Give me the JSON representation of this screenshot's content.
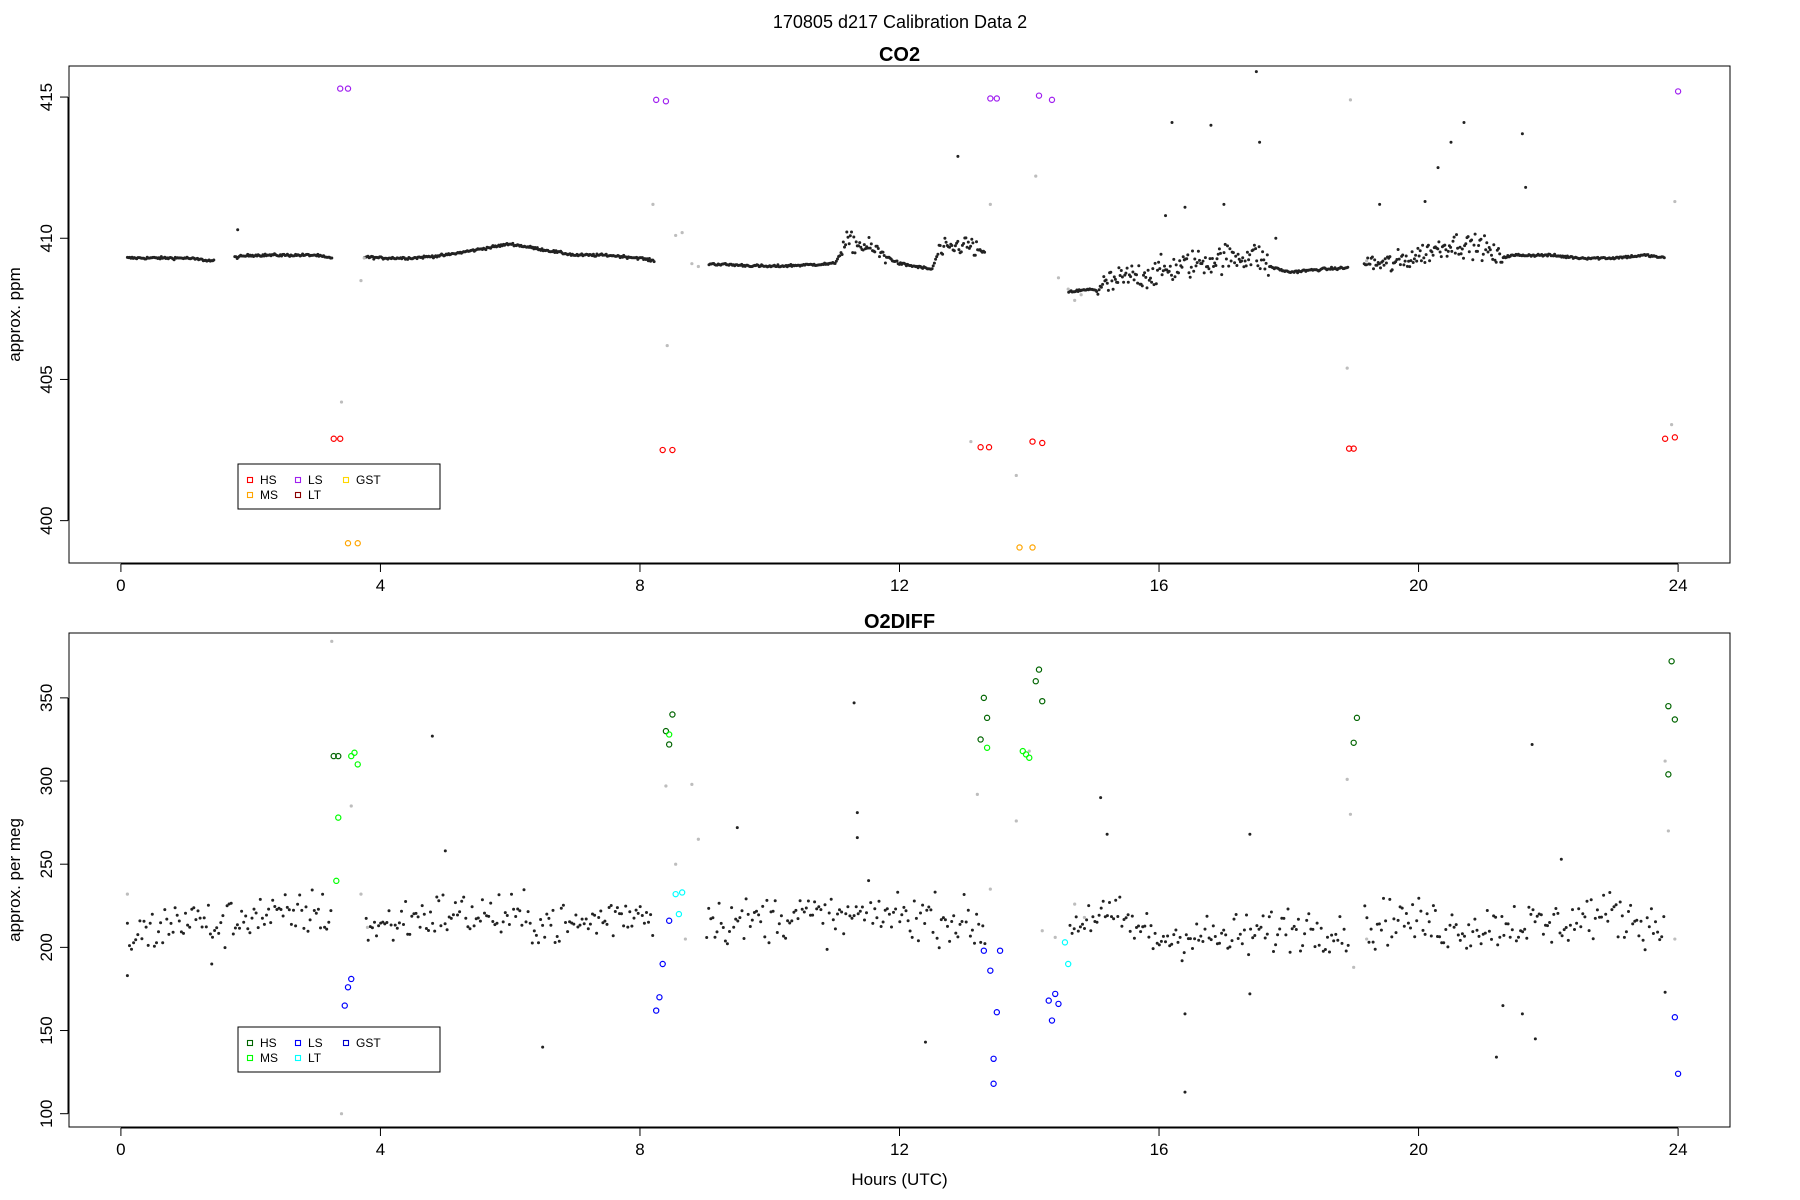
{
  "page": {
    "title": "170805   d217   Calibration Data 2"
  },
  "chart_data": [
    {
      "type": "scatter",
      "title": "CO2",
      "xlabel": "",
      "ylabel": "approx. ppm",
      "xlim": [
        -0.8,
        24.8
      ],
      "ylim": [
        398.5,
        416.1
      ],
      "xticks": [
        0,
        4,
        8,
        12,
        16,
        20,
        24
      ],
      "yticks": [
        400,
        405,
        410,
        415
      ],
      "baseline": [
        [
          0.1,
          409.3
        ],
        [
          0.5,
          409.3
        ],
        [
          1.0,
          409.3
        ],
        [
          1.4,
          409.2
        ],
        [
          1.7,
          409.3
        ],
        [
          2.0,
          409.4
        ],
        [
          2.5,
          409.4
        ],
        [
          3.0,
          409.4
        ],
        [
          3.2,
          409.3
        ],
        [
          3.7,
          409.35
        ],
        [
          4.0,
          409.3
        ],
        [
          4.5,
          409.3
        ],
        [
          5.0,
          409.4
        ],
        [
          5.5,
          409.6
        ],
        [
          6.0,
          409.8
        ],
        [
          6.5,
          409.6
        ],
        [
          7.0,
          409.4
        ],
        [
          7.5,
          409.4
        ],
        [
          8.0,
          409.3
        ],
        [
          8.2,
          409.2
        ],
        [
          9.0,
          409.1
        ],
        [
          10.0,
          409.0
        ],
        [
          10.5,
          409.05
        ],
        [
          11.0,
          409.1
        ],
        [
          11.2,
          409.9
        ],
        [
          11.6,
          409.6
        ],
        [
          12.0,
          409.1
        ],
        [
          12.5,
          408.9
        ],
        [
          12.6,
          409.5
        ],
        [
          13.0,
          409.8
        ],
        [
          13.2,
          409.6
        ],
        [
          14.6,
          408.1
        ],
        [
          15.0,
          408.2
        ],
        [
          15.5,
          408.6
        ],
        [
          16.0,
          408.8
        ],
        [
          16.5,
          409.1
        ],
        [
          17.0,
          409.3
        ],
        [
          17.5,
          409.4
        ],
        [
          17.7,
          409.0
        ],
        [
          18.0,
          408.8
        ],
        [
          18.5,
          408.9
        ],
        [
          18.9,
          408.95
        ],
        [
          19.2,
          409.1
        ],
        [
          19.6,
          409.1
        ],
        [
          20.0,
          409.4
        ],
        [
          20.5,
          409.8
        ],
        [
          21.0,
          409.7
        ],
        [
          21.2,
          409.3
        ],
        [
          21.5,
          409.4
        ],
        [
          22.0,
          409.4
        ],
        [
          22.5,
          409.3
        ],
        [
          23.0,
          409.3
        ],
        [
          23.5,
          409.4
        ],
        [
          23.8,
          409.3
        ]
      ],
      "gaps": [
        [
          1.45,
          1.75
        ],
        [
          3.25,
          3.75
        ],
        [
          8.22,
          9.05
        ],
        [
          13.32,
          14.6
        ],
        [
          18.92,
          19.15
        ]
      ],
      "gray_points": [
        [
          3.75,
          409.3
        ],
        [
          3.7,
          408.5
        ],
        [
          3.4,
          404.2
        ],
        [
          8.2,
          411.2
        ],
        [
          8.42,
          406.2
        ],
        [
          8.55,
          410.1
        ],
        [
          8.65,
          410.2
        ],
        [
          8.8,
          409.1
        ],
        [
          8.9,
          409.0
        ],
        [
          13.1,
          402.8
        ],
        [
          13.4,
          411.2
        ],
        [
          14.1,
          412.2
        ],
        [
          13.8,
          401.6
        ],
        [
          14.45,
          408.6
        ],
        [
          14.6,
          408.2
        ],
        [
          14.7,
          407.8
        ],
        [
          14.8,
          408.0
        ],
        [
          18.9,
          405.4
        ],
        [
          18.95,
          414.9
        ],
        [
          19.2,
          409.2
        ],
        [
          23.9,
          403.4
        ],
        [
          23.95,
          411.3
        ]
      ],
      "outliers": [
        [
          1.8,
          410.3
        ],
        [
          12.9,
          412.9
        ],
        [
          16.2,
          414.1
        ],
        [
          16.8,
          414.0
        ],
        [
          17.55,
          413.4
        ],
        [
          17.5,
          415.9
        ],
        [
          20.5,
          413.4
        ],
        [
          20.7,
          414.1
        ],
        [
          21.6,
          413.7
        ],
        [
          21.65,
          411.8
        ],
        [
          20.1,
          411.3
        ],
        [
          20.3,
          412.5
        ],
        [
          19.4,
          411.2
        ],
        [
          16.4,
          411.1
        ],
        [
          16.1,
          410.8
        ],
        [
          17.0,
          411.2
        ],
        [
          17.8,
          410.0
        ]
      ],
      "series": [
        {
          "name": "HS",
          "color": "#ff0000",
          "points": [
            [
              3.28,
              402.9
            ],
            [
              3.38,
              402.9
            ],
            [
              8.35,
              402.5
            ],
            [
              8.5,
              402.5
            ],
            [
              13.25,
              402.6
            ],
            [
              13.38,
              402.6
            ],
            [
              14.05,
              402.8
            ],
            [
              14.2,
              402.75
            ],
            [
              18.93,
              402.55
            ],
            [
              19.0,
              402.55
            ],
            [
              23.8,
              402.9
            ],
            [
              23.95,
              402.95
            ]
          ]
        },
        {
          "name": "MS",
          "color": "#ffa500",
          "points": [
            [
              3.5,
              399.2
            ],
            [
              3.65,
              399.2
            ],
            [
              13.85,
              399.05
            ],
            [
              14.05,
              399.05
            ]
          ]
        },
        {
          "name": "LS",
          "color": "#a020f0",
          "points": [
            [
              3.38,
              415.3
            ],
            [
              3.5,
              415.3
            ],
            [
              8.25,
              414.9
            ],
            [
              8.4,
              414.85
            ],
            [
              13.4,
              414.95
            ],
            [
              13.5,
              414.95
            ],
            [
              14.15,
              415.05
            ],
            [
              14.35,
              414.9
            ],
            [
              24.0,
              415.2
            ]
          ]
        },
        {
          "name": "LT",
          "color": "#8b0000",
          "points": []
        },
        {
          "name": "GST",
          "color": "#ffd700",
          "points": []
        }
      ],
      "legend_position": "bottom-left"
    },
    {
      "type": "scatter",
      "title": "O2DIFF",
      "xlabel": "Hours (UTC)",
      "ylabel": "approx. per meg",
      "xlim": [
        -0.8,
        24.8
      ],
      "ylim": [
        92,
        389
      ],
      "xticks": [
        0,
        4,
        8,
        12,
        16,
        20,
        24
      ],
      "yticks": [
        100,
        150,
        200,
        250,
        300,
        350
      ],
      "baseline": [
        [
          0.1,
          205
        ],
        [
          0.5,
          210
        ],
        [
          1.0,
          218
        ],
        [
          1.5,
          212
        ],
        [
          2.0,
          220
        ],
        [
          2.5,
          218
        ],
        [
          3.0,
          222
        ],
        [
          3.5,
          215
        ],
        [
          4.0,
          212
        ],
        [
          4.5,
          218
        ],
        [
          5.0,
          220
        ],
        [
          5.5,
          220
        ],
        [
          6.0,
          218
        ],
        [
          6.5,
          215
        ],
        [
          7.0,
          213
        ],
        [
          7.5,
          218
        ],
        [
          8.0,
          222
        ],
        [
          8.5,
          215
        ],
        [
          9.0,
          218
        ],
        [
          9.5,
          215
        ],
        [
          10.0,
          218
        ],
        [
          10.5,
          220
        ],
        [
          11.0,
          216
        ],
        [
          11.5,
          220
        ],
        [
          12.0,
          220
        ],
        [
          12.5,
          218
        ],
        [
          13.0,
          215
        ],
        [
          13.3,
          210
        ],
        [
          14.6,
          212
        ],
        [
          15.0,
          220
        ],
        [
          15.5,
          215
        ],
        [
          16.0,
          205
        ],
        [
          16.5,
          208
        ],
        [
          17.0,
          205
        ],
        [
          17.5,
          208
        ],
        [
          18.0,
          212
        ],
        [
          18.5,
          212
        ],
        [
          19.0,
          210
        ],
        [
          19.3,
          212
        ],
        [
          19.6,
          218
        ],
        [
          20.0,
          215
        ],
        [
          20.5,
          212
        ],
        [
          21.0,
          212
        ],
        [
          21.5,
          215
        ],
        [
          22.0,
          212
        ],
        [
          22.5,
          218
        ],
        [
          23.0,
          220
        ],
        [
          23.5,
          215
        ],
        [
          23.8,
          210
        ]
      ],
      "spread": 14,
      "gaps": [
        [
          3.25,
          3.75
        ],
        [
          8.22,
          9.0
        ],
        [
          13.32,
          14.6
        ],
        [
          18.92,
          19.15
        ]
      ],
      "gray_points": [
        [
          3.25,
          384
        ],
        [
          3.4,
          100
        ],
        [
          3.55,
          285
        ],
        [
          3.7,
          232
        ],
        [
          3.8,
          212
        ],
        [
          0.1,
          232
        ],
        [
          8.4,
          297
        ],
        [
          8.55,
          250
        ],
        [
          8.8,
          298
        ],
        [
          8.9,
          265
        ],
        [
          8.7,
          205
        ],
        [
          13.2,
          292
        ],
        [
          13.4,
          235
        ],
        [
          13.8,
          276
        ],
        [
          14.0,
          318
        ],
        [
          14.2,
          210
        ],
        [
          14.4,
          206
        ],
        [
          14.7,
          226
        ],
        [
          14.85,
          218
        ],
        [
          18.9,
          301
        ],
        [
          18.95,
          280
        ],
        [
          19.0,
          188
        ],
        [
          19.2,
          205
        ],
        [
          23.8,
          312
        ],
        [
          23.85,
          270
        ],
        [
          23.95,
          205
        ]
      ],
      "outliers": [
        [
          0.1,
          183
        ],
        [
          1.4,
          190
        ],
        [
          4.8,
          327
        ],
        [
          5.0,
          258
        ],
        [
          6.5,
          140
        ],
        [
          9.5,
          272
        ],
        [
          11.3,
          347
        ],
        [
          11.35,
          281
        ],
        [
          11.35,
          266
        ],
        [
          12.4,
          143
        ],
        [
          15.1,
          290
        ],
        [
          15.2,
          268
        ],
        [
          16.4,
          113
        ],
        [
          16.4,
          160
        ],
        [
          17.4,
          268
        ],
        [
          17.4,
          172
        ],
        [
          21.2,
          134
        ],
        [
          21.3,
          165
        ],
        [
          21.6,
          160
        ],
        [
          21.75,
          322
        ],
        [
          21.8,
          145
        ],
        [
          22.2,
          253
        ],
        [
          23.8,
          173
        ]
      ],
      "series": [
        {
          "name": "HS",
          "color": "#006400",
          "points": [
            [
              3.28,
              315
            ],
            [
              3.35,
              315
            ],
            [
              8.4,
              330
            ],
            [
              8.45,
              322
            ],
            [
              8.5,
              340
            ],
            [
              13.3,
              350
            ],
            [
              13.35,
              338
            ],
            [
              13.25,
              325
            ],
            [
              14.1,
              360
            ],
            [
              14.15,
              367
            ],
            [
              14.2,
              348
            ],
            [
              19.0,
              323
            ],
            [
              19.05,
              338
            ],
            [
              23.85,
              345
            ],
            [
              23.9,
              372
            ],
            [
              23.95,
              337
            ],
            [
              23.85,
              304
            ]
          ]
        },
        {
          "name": "MS",
          "color": "#00ff00",
          "points": [
            [
              3.32,
              240
            ],
            [
              3.35,
              278
            ],
            [
              3.6,
              317
            ],
            [
              3.65,
              310
            ],
            [
              3.55,
              315
            ],
            [
              13.9,
              318
            ],
            [
              13.95,
              316
            ],
            [
              14.0,
              314
            ],
            [
              8.45,
              328
            ],
            [
              13.35,
              320
            ]
          ]
        },
        {
          "name": "LS",
          "color": "#0000ff",
          "points": [
            [
              3.45,
              165
            ],
            [
              3.5,
              176
            ],
            [
              3.55,
              181
            ],
            [
              8.25,
              162
            ],
            [
              8.3,
              170
            ],
            [
              8.35,
              190
            ],
            [
              8.45,
              216
            ],
            [
              13.3,
              198
            ],
            [
              13.4,
              186
            ],
            [
              13.45,
              118
            ],
            [
              13.45,
              133
            ],
            [
              13.5,
              161
            ],
            [
              13.55,
              198
            ],
            [
              14.3,
              168
            ],
            [
              14.35,
              156
            ],
            [
              14.4,
              172
            ],
            [
              14.45,
              166
            ],
            [
              23.95,
              158
            ],
            [
              24.0,
              124
            ]
          ]
        },
        {
          "name": "LT",
          "color": "#00ffff",
          "points": [
            [
              8.55,
              232
            ],
            [
              8.6,
              220
            ],
            [
              8.65,
              233
            ],
            [
              14.55,
              203
            ],
            [
              14.6,
              190
            ]
          ]
        },
        {
          "name": "GST",
          "color": "#0000cd",
          "points": []
        }
      ],
      "legend_position": "bottom-left"
    }
  ]
}
